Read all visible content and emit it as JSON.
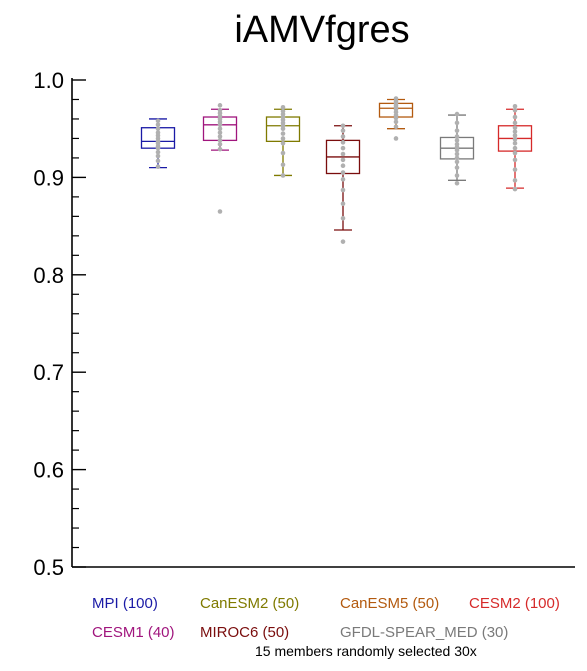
{
  "chart_data": {
    "type": "box",
    "title": "iAMVfgres",
    "xlabel": "",
    "ylabel": "",
    "ylim": [
      0.5,
      1.0
    ],
    "yticks": [
      "0.5",
      "0.6",
      "0.7",
      "0.8",
      "0.9",
      "1.0"
    ],
    "ytick_values": [
      0.5,
      0.6,
      0.7,
      0.8,
      0.9,
      1.0
    ],
    "grid": false,
    "series": [
      {
        "name": "MPI (100)",
        "color": "#1a1aa6",
        "whisker_low": 0.91,
        "q1": 0.93,
        "median": 0.937,
        "q3": 0.951,
        "whisker_high": 0.96,
        "points": [
          0.911,
          0.917,
          0.922,
          0.926,
          0.93,
          0.932,
          0.935,
          0.937,
          0.94,
          0.943,
          0.946,
          0.95,
          0.954,
          0.958
        ]
      },
      {
        "name": "CESM1 (40)",
        "color": "#a0157d",
        "whisker_low": 0.928,
        "q1": 0.938,
        "median": 0.954,
        "q3": 0.962,
        "whisker_high": 0.97,
        "points": [
          0.865,
          0.929,
          0.934,
          0.938,
          0.942,
          0.946,
          0.95,
          0.954,
          0.957,
          0.96,
          0.963,
          0.966,
          0.969,
          0.974
        ]
      },
      {
        "name": "CanESM2 (50)",
        "color": "#7f7a00",
        "whisker_low": 0.902,
        "q1": 0.937,
        "median": 0.953,
        "q3": 0.962,
        "whisker_high": 0.97,
        "points": [
          0.902,
          0.913,
          0.925,
          0.935,
          0.94,
          0.945,
          0.95,
          0.953,
          0.956,
          0.959,
          0.962,
          0.965,
          0.968,
          0.972
        ]
      },
      {
        "name": "MIROC6 (50)",
        "color": "#7a0d0d",
        "whisker_low": 0.846,
        "q1": 0.904,
        "median": 0.921,
        "q3": 0.938,
        "whisker_high": 0.953,
        "points": [
          0.834,
          0.858,
          0.873,
          0.887,
          0.898,
          0.905,
          0.912,
          0.918,
          0.924,
          0.93,
          0.936,
          0.942,
          0.948,
          0.953
        ]
      },
      {
        "name": "CanESM5 (50)",
        "color": "#b35a0f",
        "whisker_low": 0.95,
        "q1": 0.962,
        "median": 0.971,
        "q3": 0.976,
        "whisker_high": 0.98,
        "points": [
          0.94,
          0.952,
          0.957,
          0.961,
          0.964,
          0.967,
          0.97,
          0.972,
          0.974,
          0.976,
          0.978,
          0.981
        ]
      },
      {
        "name": "GFDL-SPEAR_MED (30)",
        "color": "#7a7a7a",
        "whisker_low": 0.897,
        "q1": 0.919,
        "median": 0.93,
        "q3": 0.941,
        "whisker_high": 0.964,
        "points": [
          0.894,
          0.902,
          0.91,
          0.916,
          0.92,
          0.924,
          0.928,
          0.931,
          0.934,
          0.938,
          0.942,
          0.948,
          0.956,
          0.965
        ]
      },
      {
        "name": "CESM2 (100)",
        "color": "#d62a2a",
        "whisker_low": 0.889,
        "q1": 0.927,
        "median": 0.94,
        "q3": 0.953,
        "whisker_high": 0.97,
        "points": [
          0.888,
          0.897,
          0.908,
          0.918,
          0.925,
          0.93,
          0.935,
          0.939,
          0.943,
          0.947,
          0.951,
          0.956,
          0.962,
          0.969,
          0.973
        ]
      }
    ],
    "legend_order": [
      0,
      2,
      4,
      6,
      1,
      3,
      5
    ],
    "annotation": "15 members randomly selected 30x",
    "point_color": "#b0b0b0"
  }
}
